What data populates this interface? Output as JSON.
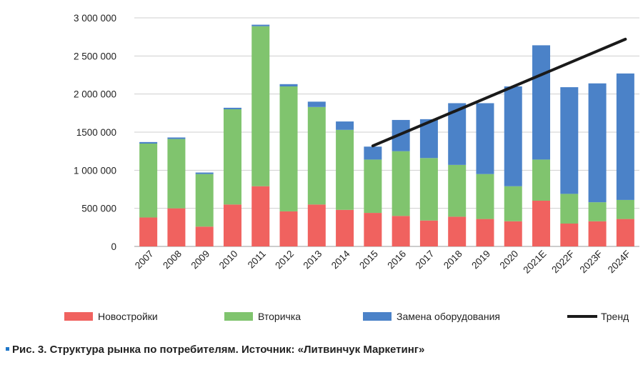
{
  "chart_data": {
    "type": "bar",
    "stacked": true,
    "categories": [
      "2007",
      "2008",
      "2009",
      "2010",
      "2011",
      "2012",
      "2013",
      "2014",
      "2015",
      "2016",
      "2017",
      "2018",
      "2019",
      "2020",
      "2021E",
      "2022F",
      "2023F",
      "2024F"
    ],
    "series": [
      {
        "name": "Новостройки",
        "color": "#f0625f",
        "values": [
          380000,
          500000,
          260000,
          550000,
          790000,
          460000,
          550000,
          480000,
          440000,
          400000,
          340000,
          390000,
          360000,
          330000,
          600000,
          300000,
          330000,
          360000
        ]
      },
      {
        "name": "Вторичка",
        "color": "#80c46e",
        "values": [
          970000,
          910000,
          690000,
          1250000,
          2100000,
          1640000,
          1280000,
          1050000,
          700000,
          850000,
          820000,
          680000,
          590000,
          460000,
          540000,
          390000,
          250000,
          250000
        ]
      },
      {
        "name": "Замена оборудования",
        "color": "#4b82c8",
        "values": [
          20000,
          20000,
          20000,
          20000,
          20000,
          30000,
          70000,
          110000,
          170000,
          410000,
          510000,
          810000,
          930000,
          1310000,
          1500000,
          1400000,
          1560000,
          1660000
        ]
      }
    ],
    "trend": {
      "name": "Тренд",
      "color": "#1a1a1a",
      "from": {
        "x": "2015",
        "y": 1320000
      },
      "to": {
        "x": "2024F",
        "y": 2720000
      }
    },
    "ylim": [
      0,
      3000000
    ],
    "yticks": [
      0,
      500000,
      1000000,
      1500000,
      2000000,
      2500000,
      3000000
    ],
    "ytick_labels": [
      "0",
      "500 000",
      "1 000 000",
      "1500 000",
      "2 000 000",
      "2 500 000",
      "3 000 000"
    ],
    "grid": true,
    "legend_position": "bottom"
  },
  "caption": {
    "text": "Рис. 3. Структура рынка по потребителям. Источник: «Литвинчук Маркетинг»",
    "marker_color": "#1f77c9"
  }
}
